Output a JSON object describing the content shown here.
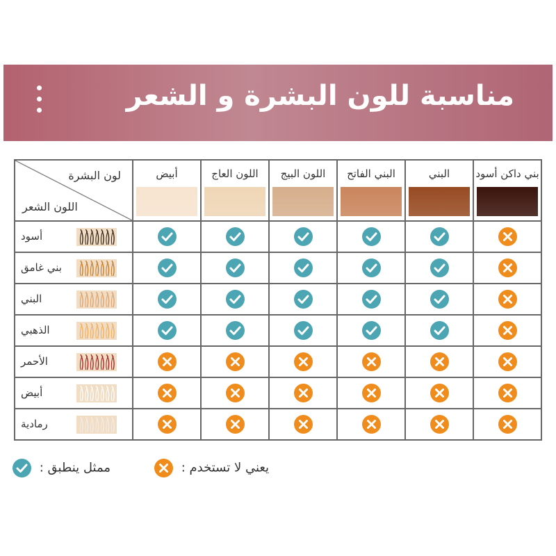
{
  "banner": {
    "title": "مناسبة للون البشرة و الشعر"
  },
  "table": {
    "skin_header": "لون البشرة",
    "hair_header": "اللون الشعر",
    "skin_tones": [
      {
        "label": "أبيض",
        "color": "#f7e3cf"
      },
      {
        "label": "اللون العاج",
        "color": "#efd6b6"
      },
      {
        "label": "اللون البيج",
        "color": "#d6ae8c"
      },
      {
        "label": "البني الفاتح",
        "color": "#c9855c"
      },
      {
        "label": "البني",
        "color": "#974b22"
      },
      {
        "label": "بني داكن أسود",
        "color": "#3a140c"
      }
    ],
    "hair_colors": [
      {
        "label": "أسود",
        "color": "#2a1a10",
        "compat": [
          true,
          true,
          true,
          true,
          true,
          false
        ]
      },
      {
        "label": "بني غامق",
        "color": "#c17a2a",
        "compat": [
          true,
          true,
          true,
          true,
          true,
          false
        ]
      },
      {
        "label": "البني",
        "color": "#dca06a",
        "compat": [
          true,
          true,
          true,
          true,
          true,
          false
        ]
      },
      {
        "label": "الذهبي",
        "color": "#efae5c",
        "compat": [
          true,
          true,
          true,
          true,
          true,
          false
        ]
      },
      {
        "label": "الأحمر",
        "color": "#9e1f1c",
        "compat": [
          false,
          false,
          false,
          false,
          false,
          false
        ]
      },
      {
        "label": "أبيض",
        "color": "#ffffff",
        "compat": [
          false,
          false,
          false,
          false,
          false,
          false
        ]
      },
      {
        "label": "رمادية",
        "color": "#f2ece6",
        "compat": [
          false,
          false,
          false,
          false,
          false,
          false
        ]
      }
    ]
  },
  "legend": {
    "applies": "ممثل ينطبق :",
    "do_not_use": "يعني لا تستخدم :"
  },
  "colors": {
    "check": "#4ba5b2",
    "cross": "#f08c1c"
  }
}
